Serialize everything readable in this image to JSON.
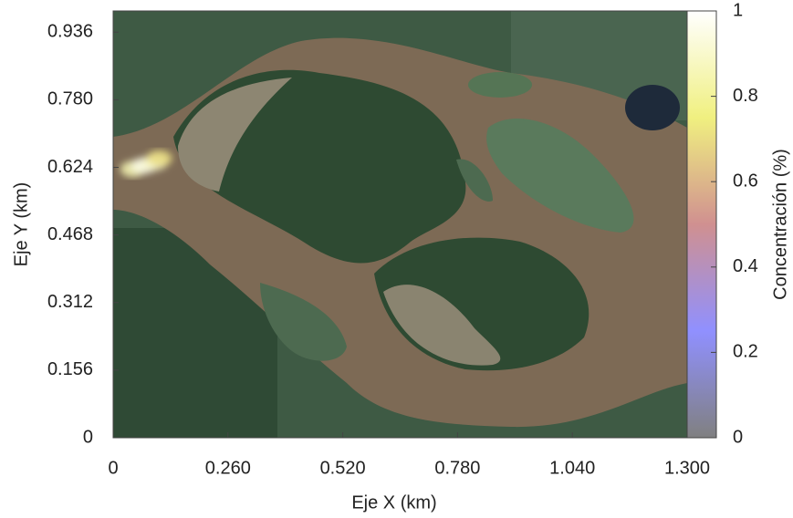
{
  "chart_data": {
    "type": "heatmap",
    "xlabel": "Eje X (km)",
    "ylabel": "Eje Y (km)",
    "xlim": [
      0,
      1.3
    ],
    "ylim": [
      0,
      0.985
    ],
    "xticks": [
      0,
      {
        "value": 0.26,
        "label": "0.260"
      },
      {
        "value": 0.52,
        "label": "0.520"
      },
      {
        "value": 0.78,
        "label": "0.780"
      },
      {
        "value": 1.04,
        "label": "1.040"
      },
      {
        "value": 1.3,
        "label": "1.300"
      }
    ],
    "yticks": [
      0,
      0.156,
      0.312,
      0.468,
      0.624,
      {
        "value": 0.78,
        "label": "0.780"
      },
      0.936
    ],
    "x": [
      0.045,
      0.07,
      0.095,
      0.105
    ],
    "y": [
      0.62,
      0.628,
      0.636,
      0.645
    ],
    "values": [
      0.85,
      0.95,
      0.9,
      0.7
    ],
    "colorbar": {
      "label": "Concentración (%)",
      "lim": [
        0,
        1
      ],
      "ticks": [
        0,
        0.2,
        0.4,
        0.6,
        0.8,
        1
      ],
      "colors": [
        "#808080",
        "#9090ff",
        "#d09090",
        "#f0f080",
        "#ffffff"
      ]
    }
  }
}
